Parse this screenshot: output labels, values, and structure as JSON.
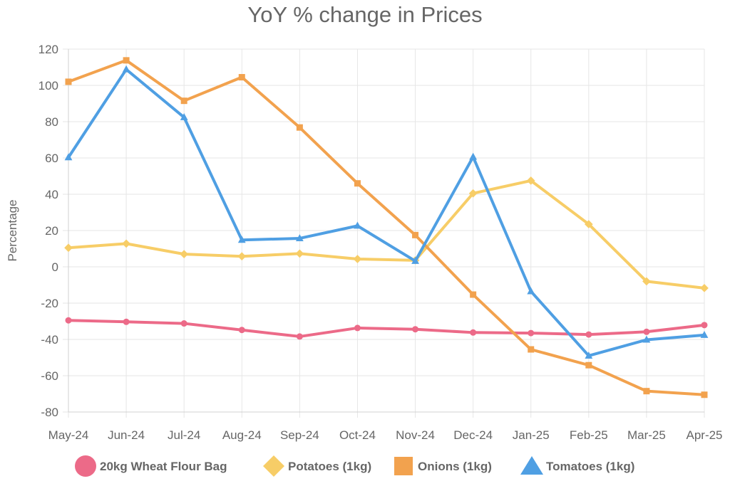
{
  "chart_data": {
    "type": "line",
    "title": "YoY % change in Prices",
    "xlabel": "",
    "ylabel": "Percentage",
    "categories": [
      "May-24",
      "Jun-24",
      "Jul-24",
      "Aug-24",
      "Sep-24",
      "Oct-24",
      "Nov-24",
      "Dec-24",
      "Jan-25",
      "Feb-25",
      "Mar-25",
      "Apr-25"
    ],
    "ylim": [
      -80,
      120
    ],
    "yticks": [
      120,
      100,
      80,
      60,
      40,
      20,
      0,
      -20,
      -40,
      -60,
      -80
    ],
    "grid": true,
    "legend_position": "bottom",
    "series": [
      {
        "name": "20kg Wheat Flour Bag",
        "color": "#ec6a88",
        "marker": "circle",
        "values": [
          -29.5,
          -30.3,
          -31.2,
          -34.8,
          -38.4,
          -33.7,
          -34.4,
          -36.2,
          -36.5,
          -37.3,
          -35.8,
          -32.1
        ]
      },
      {
        "name": "Potatoes (1kg)",
        "color": "#f7cd67",
        "marker": "diamond",
        "values": [
          10.5,
          12.8,
          7.0,
          5.8,
          7.3,
          4.3,
          3.6,
          40.5,
          47.5,
          23.5,
          -8.0,
          -11.7
        ]
      },
      {
        "name": "Onions (1kg)",
        "color": "#f2a24e",
        "marker": "square",
        "values": [
          102.0,
          113.8,
          91.5,
          104.5,
          76.8,
          46.0,
          17.5,
          -15.3,
          -45.5,
          -54.2,
          -68.5,
          -70.5
        ]
      },
      {
        "name": "Tomatoes (1kg)",
        "color": "#4f9fe3",
        "marker": "triangle",
        "values": [
          60.3,
          108.8,
          82.4,
          14.8,
          15.7,
          22.6,
          3.2,
          60.6,
          -13.5,
          -49.0,
          -40.2,
          -37.6
        ]
      }
    ]
  }
}
